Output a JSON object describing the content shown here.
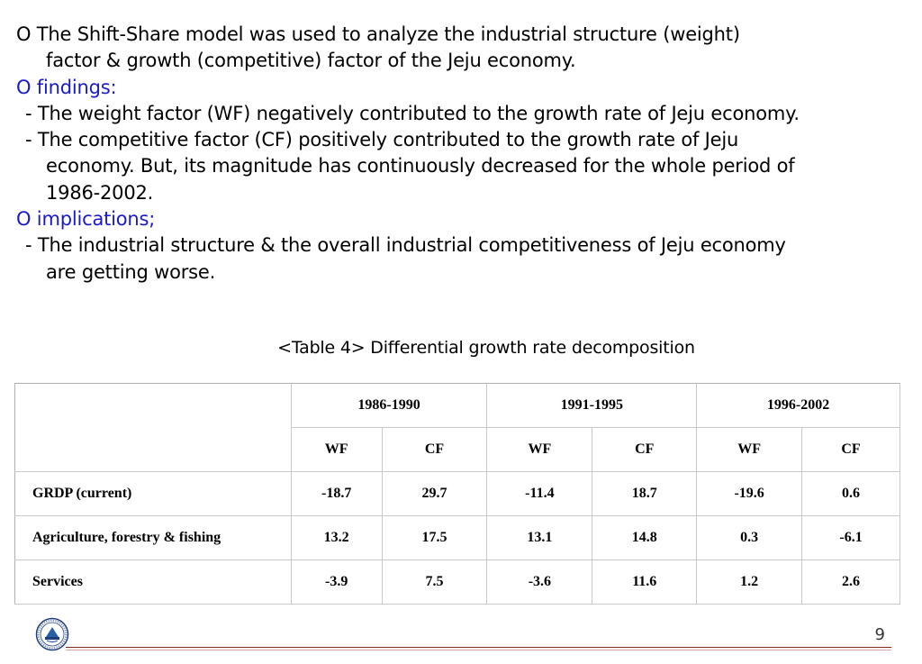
{
  "content": {
    "line1": "O The Shift-Share model was used to analyze the industrial structure (weight)",
    "line2": "factor & growth (competitive) factor of the Jeju economy.",
    "findings_heading": "O findings:",
    "finding1": "- The weight factor (WF) negatively contributed to the growth rate of Jeju economy.",
    "finding2_line1": "- The competitive factor (CF) positively contributed to the growth rate of Jeju",
    "finding2_line2": "economy. But, its magnitude has continuously decreased for the whole period of",
    "finding2_line3": "1986-2002.",
    "implications_heading": "O implications;",
    "implication1_line1": "- The industrial structure & the overall industrial competitiveness of Jeju economy",
    "implication1_line2": "are getting worse."
  },
  "table": {
    "caption": "<Table 4> Differential growth rate decomposition",
    "periods": [
      "1986-1990",
      "1991-1995",
      "1996-2002"
    ],
    "subheaders": [
      "WF",
      "CF",
      "WF",
      "CF",
      "WF",
      "CF"
    ],
    "rows": [
      {
        "label": "GRDP (current)",
        "values": [
          "-18.7",
          "29.7",
          "-11.4",
          "18.7",
          "-19.6",
          "0.6"
        ]
      },
      {
        "label": "Agriculture, forestry & fishing",
        "values": [
          "13.2",
          "17.5",
          "13.1",
          "14.8",
          "0.3",
          "-6.1"
        ]
      },
      {
        "label": "Services",
        "values": [
          "-3.9",
          "7.5",
          "-3.6",
          "11.6",
          "1.2",
          "2.6"
        ]
      }
    ]
  },
  "footer": {
    "page_number": "9",
    "logo_icon": "university-seal-icon"
  },
  "colors": {
    "heading_blue": "#1a1acc",
    "footer_line": "#8b2a1c"
  }
}
